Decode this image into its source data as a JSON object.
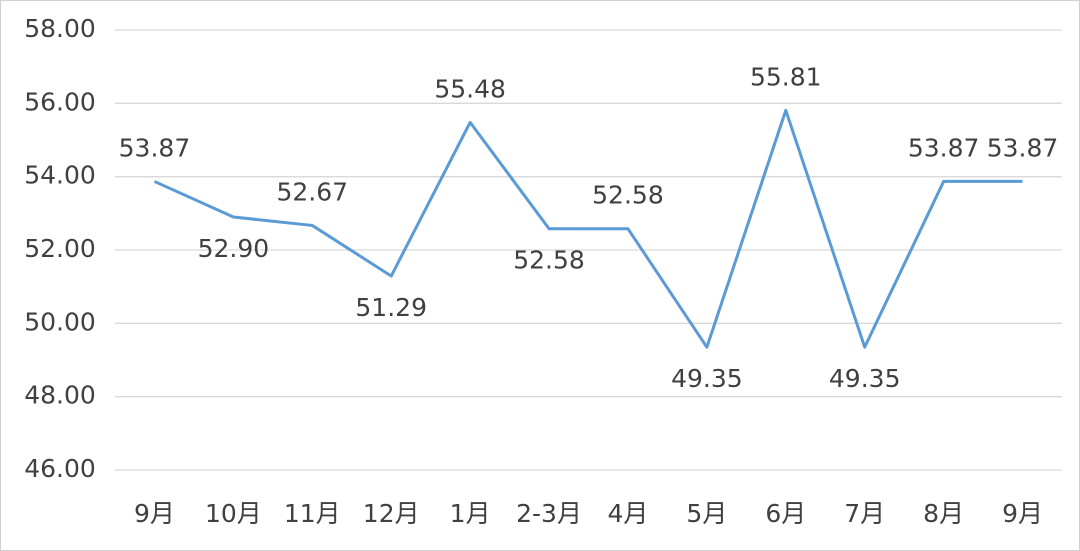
{
  "chart_data": {
    "type": "line",
    "categories": [
      "9月",
      "10月",
      "11月",
      "12月",
      "1月",
      "2-3月",
      "4月",
      "5月",
      "6月",
      "7月",
      "8月",
      "9月"
    ],
    "values": [
      53.87,
      52.9,
      52.67,
      51.29,
      55.48,
      52.58,
      52.58,
      49.35,
      55.81,
      49.35,
      53.87,
      53.87
    ],
    "value_labels": [
      "53.87",
      "52.90",
      "52.67",
      "51.29",
      "55.48",
      "52.58",
      "52.58",
      "49.35",
      "55.81",
      "49.35",
      "53.87",
      "53.87"
    ],
    "color": "#5b9bd5",
    "ylim": [
      46,
      58
    ],
    "yticks": [
      {
        "value": 46,
        "label": "46.00"
      },
      {
        "value": 48,
        "label": "48.00"
      },
      {
        "value": 50,
        "label": "50.00"
      },
      {
        "value": 52,
        "label": "52.00"
      },
      {
        "value": 54,
        "label": "54.00"
      },
      {
        "value": 56,
        "label": "56.00"
      },
      {
        "value": 58,
        "label": "58.00"
      }
    ],
    "grid": true
  }
}
